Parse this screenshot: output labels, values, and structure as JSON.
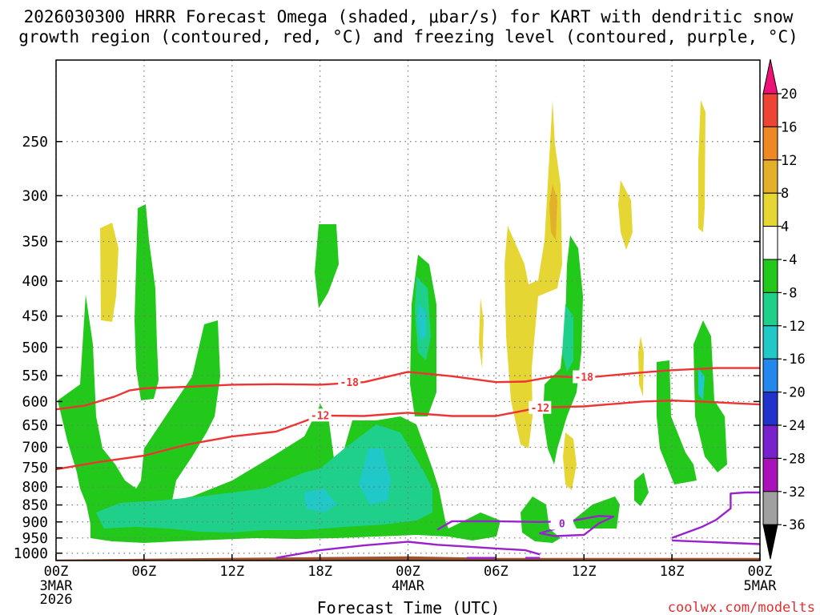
{
  "chart_data": {
    "type": "heatmap",
    "title_line1": "2026030300 HRRR Forecast Omega (shaded, μbar/s) for KART with dendritic snow",
    "title_line2": "growth region (contoured, red, °C) and freezing level (contoured, purple, °C)",
    "xlabel": "Forecast Time (UTC)",
    "ylabel": "",
    "credit": "coolwx.com/modelts",
    "xlim_hours": [
      0,
      48
    ],
    "ylim_hpa": [
      1025,
      190
    ],
    "x_ticks": [
      {
        "hour": 0,
        "label": "00Z",
        "sub1": "3MAR",
        "sub2": "2026"
      },
      {
        "hour": 6,
        "label": "06Z",
        "sub1": "",
        "sub2": ""
      },
      {
        "hour": 12,
        "label": "12Z",
        "sub1": "",
        "sub2": ""
      },
      {
        "hour": 18,
        "label": "18Z",
        "sub1": "",
        "sub2": ""
      },
      {
        "hour": 24,
        "label": "00Z",
        "sub1": "4MAR",
        "sub2": ""
      },
      {
        "hour": 30,
        "label": "06Z",
        "sub1": "",
        "sub2": ""
      },
      {
        "hour": 36,
        "label": "12Z",
        "sub1": "",
        "sub2": ""
      },
      {
        "hour": 42,
        "label": "18Z",
        "sub1": "",
        "sub2": ""
      },
      {
        "hour": 48,
        "label": "00Z",
        "sub1": "5MAR",
        "sub2": ""
      }
    ],
    "y_ticks": [
      {
        "p": 250,
        "label": "250"
      },
      {
        "p": 300,
        "label": "300"
      },
      {
        "p": 350,
        "label": "350"
      },
      {
        "p": 400,
        "label": "400"
      },
      {
        "p": 450,
        "label": "450"
      },
      {
        "p": 500,
        "label": "500"
      },
      {
        "p": 550,
        "label": "550"
      },
      {
        "p": 600,
        "label": "600"
      },
      {
        "p": 650,
        "label": "650"
      },
      {
        "p": 700,
        "label": "700"
      },
      {
        "p": 750,
        "label": "750"
      },
      {
        "p": 800,
        "label": "800"
      },
      {
        "p": 850,
        "label": "850"
      },
      {
        "p": 900,
        "label": "900"
      },
      {
        "p": 950,
        "label": "950"
      },
      {
        "p": 1000,
        "label": "1000"
      }
    ],
    "colorbar": {
      "labels": [
        "20",
        "16",
        "12",
        "8",
        "4",
        "-4",
        "-8",
        "-12",
        "-16",
        "-20",
        "-24",
        "-28",
        "-32",
        "-36"
      ],
      "bins": [
        {
          "color": "#ee1177",
          "range": ">20"
        },
        {
          "color": "#ee4433",
          "range": "16 to 20"
        },
        {
          "color": "#ee8822",
          "range": "12 to 16"
        },
        {
          "color": "#e3b02a",
          "range": "8 to 12"
        },
        {
          "color": "#e6d634",
          "range": "4 to 8"
        },
        {
          "color": "#ffffff",
          "range": "-4 to 4"
        },
        {
          "color": "#22c81a",
          "range": "-8 to -4"
        },
        {
          "color": "#1fd08a",
          "range": "-12 to -8"
        },
        {
          "color": "#20c8c8",
          "range": "-16 to -12"
        },
        {
          "color": "#2288ee",
          "range": "-20 to -16"
        },
        {
          "color": "#2233cc",
          "range": "-24 to -20"
        },
        {
          "color": "#7722cc",
          "range": "-28 to -24"
        },
        {
          "color": "#aa11bb",
          "range": "-32 to -28"
        },
        {
          "color": "#a0a0a0",
          "range": "-36 to -32"
        },
        {
          "color": "#000000",
          "range": "<-36"
        }
      ]
    },
    "ground_color": "#a0522d",
    "contours": {
      "minus18_c": {
        "color": "#ee3333",
        "label": "-18",
        "points": [
          [
            0,
            616
          ],
          [
            2,
            608
          ],
          [
            4,
            590
          ],
          [
            5,
            578
          ],
          [
            6,
            574
          ],
          [
            9,
            571
          ],
          [
            12,
            567
          ],
          [
            15,
            566
          ],
          [
            18,
            567
          ],
          [
            21,
            562
          ],
          [
            24,
            543
          ],
          [
            27,
            551
          ],
          [
            30,
            562
          ],
          [
            32,
            561
          ],
          [
            33,
            556
          ],
          [
            34,
            551
          ],
          [
            36,
            554
          ],
          [
            40,
            544
          ],
          [
            42,
            540
          ],
          [
            45,
            536
          ],
          [
            48,
            536
          ]
        ],
        "label_points": [
          [
            20,
            562
          ],
          [
            36,
            552
          ]
        ]
      },
      "minus12_c": {
        "color": "#ee3333",
        "label": "-12",
        "points": [
          [
            0,
            754
          ],
          [
            3,
            735
          ],
          [
            6,
            720
          ],
          [
            9,
            693
          ],
          [
            12,
            675
          ],
          [
            15,
            664
          ],
          [
            18,
            629
          ],
          [
            21,
            630
          ],
          [
            24,
            623
          ],
          [
            27,
            630
          ],
          [
            30,
            630
          ],
          [
            32,
            618
          ],
          [
            33,
            612
          ],
          [
            36,
            610
          ],
          [
            40,
            600
          ],
          [
            42,
            598
          ],
          [
            44,
            600
          ],
          [
            46,
            603
          ],
          [
            48,
            606
          ]
        ],
        "label_points": [
          [
            18,
            628
          ],
          [
            33,
            612
          ]
        ]
      },
      "zero_c": {
        "color": "#9922cc",
        "label": "0",
        "segments": [
          [
            [
              15,
              1016
            ],
            [
              18,
              990
            ],
            [
              21,
              974
            ],
            [
              24,
              962
            ],
            [
              26,
              972
            ],
            [
              28,
              978
            ],
            [
              30,
              984
            ],
            [
              32,
              990
            ],
            [
              33,
              1004
            ]
          ],
          [
            [
              26,
              924
            ],
            [
              27,
              898
            ],
            [
              30,
              898
            ],
            [
              33,
              900
            ],
            [
              35,
              898
            ],
            [
              37,
              882
            ],
            [
              38,
              884
            ],
            [
              37,
              905
            ],
            [
              36,
              940
            ],
            [
              34,
              944
            ],
            [
              33,
              935
            ],
            [
              34,
              922
            ]
          ],
          [
            [
              28,
              1016
            ],
            [
              30,
              1016
            ]
          ],
          [
            [
              32,
              1016
            ],
            [
              33,
              1016
            ]
          ],
          [
            [
              42,
              950
            ],
            [
              44,
              916
            ],
            [
              45,
              894
            ],
            [
              46,
              860
            ],
            [
              46,
              818
            ],
            [
              47,
              815
            ],
            [
              48,
              815
            ]
          ],
          [
            [
              42,
              958
            ],
            [
              46,
              966
            ],
            [
              48,
              970
            ]
          ]
        ],
        "label_points": [
          [
            34.5,
            904
          ]
        ]
      }
    }
  }
}
